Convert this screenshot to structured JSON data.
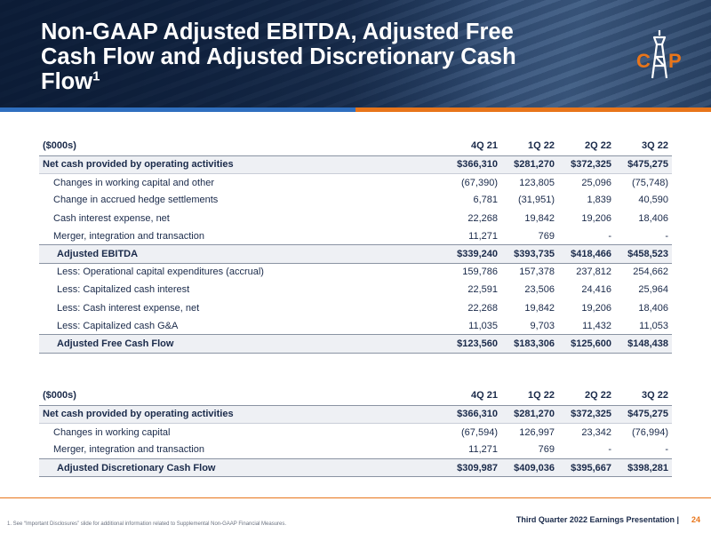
{
  "header": {
    "title": "Non-GAAP Adjusted EBITDA, Adjusted Free Cash Flow and Adjusted Discretionary Cash Flow",
    "title_sup": "1",
    "logo_left": "C",
    "logo_right": "P"
  },
  "colors": {
    "accent_orange": "#e8751a",
    "accent_blue": "#2f6fbf",
    "navy": "#1a2a4a"
  },
  "table1": {
    "header": [
      "($000s)",
      "4Q 21",
      "1Q 22",
      "2Q 22",
      "3Q 22"
    ],
    "rows": [
      [
        "Net cash provided by operating activities",
        "$366,310",
        "$281,270",
        "$372,325",
        "$475,275"
      ],
      [
        "Changes in working capital and other",
        "(67,390)",
        "123,805",
        "25,096",
        "(75,748)"
      ],
      [
        "Change in accrued hedge settlements",
        "6,781",
        "(31,951)",
        "1,839",
        "40,590"
      ],
      [
        "Cash interest expense, net",
        "22,268",
        "19,842",
        "19,206",
        "18,406"
      ],
      [
        "Merger, integration and transaction",
        "11,271",
        "769",
        "-",
        "-"
      ],
      [
        "Adjusted EBITDA",
        "$339,240",
        "$393,735",
        "$418,466",
        "$458,523"
      ],
      [
        "Less: Operational capital expenditures (accrual)",
        "159,786",
        "157,378",
        "237,812",
        "254,662"
      ],
      [
        "Less: Capitalized cash interest",
        "22,591",
        "23,506",
        "24,416",
        "25,964"
      ],
      [
        "Less: Cash interest expense, net",
        "22,268",
        "19,842",
        "19,206",
        "18,406"
      ],
      [
        "Less: Capitalized cash G&A",
        "11,035",
        "9,703",
        "11,432",
        "11,053"
      ],
      [
        "Adjusted Free Cash Flow",
        "$123,560",
        "$183,306",
        "$125,600",
        "$148,438"
      ]
    ]
  },
  "table2": {
    "header": [
      "($000s)",
      "4Q 21",
      "1Q 22",
      "2Q 22",
      "3Q 22"
    ],
    "rows": [
      [
        "Net cash provided by operating activities",
        "$366,310",
        "$281,270",
        "$372,325",
        "$475,275"
      ],
      [
        "Changes in working capital",
        "(67,594)",
        "126,997",
        "23,342",
        "(76,994)"
      ],
      [
        "Merger, integration and transaction",
        "11,271",
        "769",
        "-",
        "-"
      ],
      [
        "Adjusted Discretionary Cash Flow",
        "$309,987",
        "$409,036",
        "$395,667",
        "$398,281"
      ]
    ]
  },
  "footer": {
    "footnote": "1.  See “Important Disclosures” slide for additional information related to Supplemental Non-GAAP Financial Measures.",
    "label": "Third Quarter 2022 Earnings Presentation |",
    "page": "24"
  }
}
